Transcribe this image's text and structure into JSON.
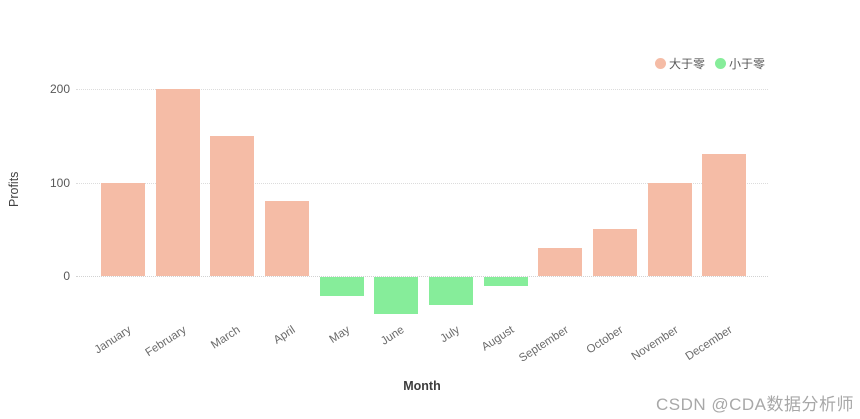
{
  "chart_data": {
    "type": "bar",
    "title": "",
    "categories": [
      "January",
      "February",
      "March",
      "April",
      "May",
      "June",
      "July",
      "August",
      "September",
      "October",
      "November",
      "December"
    ],
    "values": [
      100,
      200,
      150,
      80,
      -20,
      -40,
      -30,
      -10,
      30,
      50,
      100,
      130
    ],
    "xlabel": "Month",
    "ylabel": "Profits",
    "yticks": [
      0,
      100,
      200
    ],
    "ylim": [
      -55,
      215
    ],
    "grid": "horizontal-dotted",
    "legend_position": "top-right",
    "legend": [
      {
        "label": "大于零",
        "color": "#f5bca6"
      },
      {
        "label": "小于零",
        "color": "#86ed9a"
      }
    ],
    "series_rule": "positive values use 大于零 color, negative values use 小于零 color"
  },
  "colors": {
    "positive_bar": "#f5bca6",
    "negative_bar": "#86ed9a",
    "gridline": "#dcdcdc",
    "tick_text": "#595959",
    "axis_title_text": "#3d3d3d"
  },
  "watermark": {
    "text": "CSDN @CDA数据分析师"
  }
}
